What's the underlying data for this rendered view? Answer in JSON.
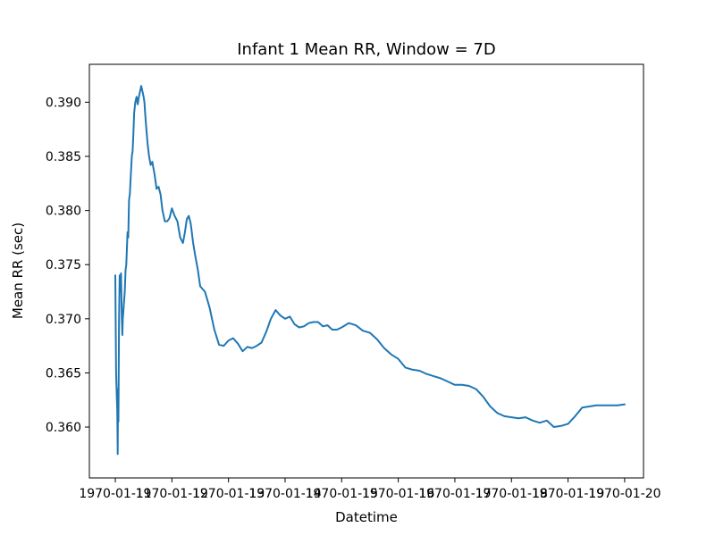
{
  "chart_data": {
    "type": "line",
    "title": "Infant 1 Mean RR, Window = 7D",
    "xlabel": "Datetime",
    "ylabel": "Mean RR (sec)",
    "line_color": "#1f77b4",
    "grid": false,
    "xlim": [
      "1970-01-10T13:00",
      "1970-01-20T08:00"
    ],
    "ylim": [
      0.3553,
      0.3935
    ],
    "x_ticks": [
      "1970-01-11",
      "1970-01-12",
      "1970-01-13",
      "1970-01-14",
      "1970-01-15",
      "1970-01-16",
      "1970-01-17",
      "1970-01-18",
      "1970-01-19",
      "1970-01-20"
    ],
    "y_ticks": [
      "0.360",
      "0.365",
      "0.370",
      "0.375",
      "0.380",
      "0.385",
      "0.390"
    ],
    "series": [
      {
        "x": [
          "1970-01-11T00:00",
          "1970-01-11T00:20",
          "1970-01-11T00:35",
          "1970-01-11T00:50",
          "1970-01-11T01:00",
          "1970-01-11T01:10",
          "1970-01-11T01:20",
          "1970-01-11T01:35",
          "1970-01-11T01:50",
          "1970-01-11T02:10",
          "1970-01-11T02:25",
          "1970-01-11T02:45",
          "1970-01-11T03:00",
          "1970-01-11T03:10",
          "1970-01-11T03:30",
          "1970-01-11T04:00",
          "1970-01-11T04:20",
          "1970-01-11T04:40",
          "1970-01-11T05:10",
          "1970-01-11T05:30",
          "1970-01-11T05:50",
          "1970-01-11T06:10",
          "1970-01-11T06:30",
          "1970-01-11T07:00",
          "1970-01-11T07:20",
          "1970-01-11T07:40",
          "1970-01-11T08:00",
          "1970-01-11T08:30",
          "1970-01-11T09:00",
          "1970-01-11T09:30",
          "1970-01-11T10:00",
          "1970-01-11T10:30",
          "1970-01-11T11:00",
          "1970-01-11T11:30",
          "1970-01-11T12:00",
          "1970-01-11T12:20",
          "1970-01-11T12:40",
          "1970-01-11T13:00",
          "1970-01-11T13:40",
          "1970-01-11T14:20",
          "1970-01-11T15:00",
          "1970-01-11T15:40",
          "1970-01-11T16:40",
          "1970-01-11T17:30",
          "1970-01-11T18:20",
          "1970-01-11T19:10",
          "1970-01-11T20:00",
          "1970-01-11T21:00",
          "1970-01-11T22:00",
          "1970-01-11T23:00",
          "1970-01-12T00:00",
          "1970-01-12T01:10",
          "1970-01-12T02:20",
          "1970-01-12T03:30",
          "1970-01-12T04:40",
          "1970-01-12T05:30",
          "1970-01-12T06:20",
          "1970-01-12T07:10",
          "1970-01-12T08:00",
          "1970-01-12T09:00",
          "1970-01-12T10:00",
          "1970-01-12T11:00",
          "1970-01-12T12:00",
          "1970-01-12T14:00",
          "1970-01-12T16:00",
          "1970-01-12T18:00",
          "1970-01-12T20:00",
          "1970-01-12T22:00",
          "1970-01-13T00:00",
          "1970-01-13T02:00",
          "1970-01-13T04:00",
          "1970-01-13T06:00",
          "1970-01-13T08:00",
          "1970-01-13T10:00",
          "1970-01-13T12:00",
          "1970-01-13T14:00",
          "1970-01-13T16:00",
          "1970-01-13T18:00",
          "1970-01-13T20:00",
          "1970-01-13T22:00",
          "1970-01-14T00:00",
          "1970-01-14T02:00",
          "1970-01-14T04:00",
          "1970-01-14T06:00",
          "1970-01-14T08:00",
          "1970-01-14T10:00",
          "1970-01-14T12:00",
          "1970-01-14T14:00",
          "1970-01-14T16:00",
          "1970-01-14T18:00",
          "1970-01-14T20:00",
          "1970-01-14T22:00",
          "1970-01-15T00:00",
          "1970-01-15T03:00",
          "1970-01-15T06:00",
          "1970-01-15T09:00",
          "1970-01-15T12:00",
          "1970-01-15T15:00",
          "1970-01-15T18:00",
          "1970-01-15T21:00",
          "1970-01-16T00:00",
          "1970-01-16T03:00",
          "1970-01-16T06:00",
          "1970-01-16T09:00",
          "1970-01-16T12:00",
          "1970-01-16T15:00",
          "1970-01-16T18:00",
          "1970-01-16T21:00",
          "1970-01-17T00:00",
          "1970-01-17T03:00",
          "1970-01-17T06:00",
          "1970-01-17T09:00",
          "1970-01-17T12:00",
          "1970-01-17T15:00",
          "1970-01-17T18:00",
          "1970-01-17T21:00",
          "1970-01-18T00:00",
          "1970-01-18T03:00",
          "1970-01-18T06:00",
          "1970-01-18T09:00",
          "1970-01-18T12:00",
          "1970-01-18T15:00",
          "1970-01-18T18:00",
          "1970-01-18T21:00",
          "1970-01-19T00:00",
          "1970-01-19T03:00",
          "1970-01-19T06:00",
          "1970-01-19T09:00",
          "1970-01-19T12:00",
          "1970-01-19T15:00",
          "1970-01-19T18:00",
          "1970-01-19T21:00",
          "1970-01-20T00:00"
        ],
        "y": [
          0.374,
          0.365,
          0.363,
          0.3615,
          0.3575,
          0.3635,
          0.3605,
          0.37,
          0.374,
          0.3725,
          0.3742,
          0.37,
          0.3685,
          0.37,
          0.371,
          0.3725,
          0.3745,
          0.375,
          0.378,
          0.3775,
          0.381,
          0.3815,
          0.383,
          0.385,
          0.3855,
          0.387,
          0.389,
          0.39,
          0.3905,
          0.3898,
          0.3905,
          0.391,
          0.3915,
          0.391,
          0.3905,
          0.39,
          0.389,
          0.388,
          0.3862,
          0.385,
          0.3842,
          0.3845,
          0.3833,
          0.382,
          0.3822,
          0.3815,
          0.38,
          0.379,
          0.379,
          0.3793,
          0.3802,
          0.3795,
          0.379,
          0.3775,
          0.377,
          0.378,
          0.3792,
          0.3795,
          0.3788,
          0.377,
          0.3757,
          0.3745,
          0.373,
          0.3725,
          0.371,
          0.369,
          0.3676,
          0.3675,
          0.368,
          0.3682,
          0.3677,
          0.367,
          0.3674,
          0.3673,
          0.3675,
          0.3678,
          0.3688,
          0.37,
          0.3708,
          0.3703,
          0.37,
          0.3702,
          0.3695,
          0.3692,
          0.3693,
          0.3696,
          0.3697,
          0.3697,
          0.3693,
          0.3694,
          0.369,
          0.369,
          0.3692,
          0.3696,
          0.3694,
          0.3689,
          0.3687,
          0.3681,
          0.3673,
          0.3667,
          0.3663,
          0.3655,
          0.3653,
          0.3652,
          0.3649,
          0.3647,
          0.3645,
          0.3642,
          0.3639,
          0.3639,
          0.3638,
          0.3635,
          0.3628,
          0.3619,
          0.3613,
          0.361,
          0.3609,
          0.3608,
          0.3609,
          0.3606,
          0.3604,
          0.3606,
          0.36,
          0.3601,
          0.3603,
          0.361,
          0.3618,
          0.3619,
          0.362,
          0.362,
          0.362,
          0.362,
          0.3621
        ]
      }
    ]
  }
}
